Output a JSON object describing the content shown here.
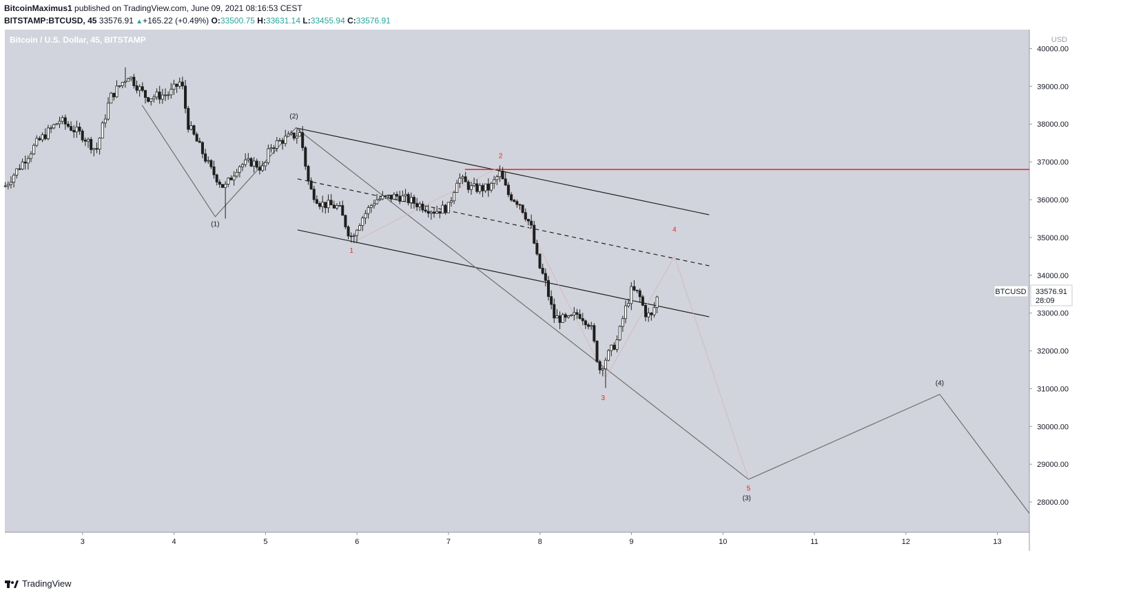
{
  "header": {
    "author": "BitcoinMaximus1",
    "published": "published on TradingView.com, June 09, 2021 08:16:53 CEST",
    "symbol": "BITSTAMP:BTCUSD, 45",
    "last": "33576.91",
    "change_arrow": "▲",
    "change": "+165.22 (+0.49%)",
    "o_label": "O:",
    "o": "33500.75",
    "h_label": "H:",
    "h": "33631.14",
    "l_label": "L:",
    "l": "33455.94",
    "c_label": "C:",
    "c": "33576.91"
  },
  "chart_title": "Bitcoin / U.S. Dollar, 45, BITSTAMP",
  "footer": {
    "brand": "TradingView",
    "logo_icon": "tradingview-logo-icon"
  },
  "colors": {
    "background": "#d1d4dc",
    "candle": "#1f1f1f",
    "red": "#e8231f",
    "text": "#131722",
    "gray_line": "#6e6e6e"
  },
  "chart_data": {
    "type": "candlestick",
    "title": "Bitcoin / U.S. Dollar, 45, BITSTAMP",
    "y_unit": "USD",
    "ylim": [
      27200,
      40500
    ],
    "xlim": [
      2.15,
      13.35
    ],
    "x_ticks": [
      "3",
      "4",
      "5",
      "6",
      "7",
      "8",
      "9",
      "10",
      "11",
      "12",
      "13"
    ],
    "y_ticks": [
      "28000.00",
      "29000.00",
      "30000.00",
      "31000.00",
      "32000.00",
      "33000.00",
      "34000.00",
      "35000.00",
      "36000.00",
      "37000.00",
      "38000.00",
      "39000.00",
      "40000.00"
    ],
    "price_tag": {
      "symbol": "BTCUSD",
      "price": "33576.91",
      "countdown": "28:09",
      "value": 33576.91
    },
    "price_path": [
      [
        2.15,
        36350
      ],
      [
        2.5,
        37500
      ],
      [
        2.75,
        38100
      ],
      [
        3.0,
        37700
      ],
      [
        3.15,
        37300
      ],
      [
        3.3,
        38700
      ],
      [
        3.5,
        39300
      ],
      [
        3.7,
        38700
      ],
      [
        3.95,
        38800
      ],
      [
        4.08,
        39150
      ],
      [
        4.15,
        38000
      ],
      [
        4.3,
        37300
      ],
      [
        4.4,
        36800
      ],
      [
        4.55,
        36300
      ],
      [
        4.7,
        36900
      ],
      [
        4.85,
        37000
      ],
      [
        4.98,
        36800
      ],
      [
        5.05,
        37400
      ],
      [
        5.2,
        37600
      ],
      [
        5.38,
        37750
      ],
      [
        5.48,
        36300
      ],
      [
        5.6,
        35900
      ],
      [
        5.8,
        35800
      ],
      [
        5.93,
        35000
      ],
      [
        6.05,
        35500
      ],
      [
        6.2,
        36000
      ],
      [
        6.45,
        36100
      ],
      [
        6.65,
        35900
      ],
      [
        6.85,
        35700
      ],
      [
        7.0,
        35800
      ],
      [
        7.1,
        36600
      ],
      [
        7.25,
        36300
      ],
      [
        7.45,
        36300
      ],
      [
        7.56,
        36700
      ],
      [
        7.65,
        36150
      ],
      [
        7.78,
        35900
      ],
      [
        7.9,
        35300
      ],
      [
        7.98,
        34300
      ],
      [
        8.05,
        33900
      ],
      [
        8.15,
        32900
      ],
      [
        8.3,
        32800
      ],
      [
        8.42,
        33000
      ],
      [
        8.55,
        32700
      ],
      [
        8.65,
        31500
      ],
      [
        8.72,
        31800
      ],
      [
        8.85,
        32300
      ],
      [
        8.92,
        33000
      ],
      [
        9.0,
        33600
      ],
      [
        9.08,
        33500
      ],
      [
        9.15,
        33000
      ],
      [
        9.22,
        32900
      ],
      [
        9.3,
        33580
      ]
    ],
    "lows": [
      [
        4.56,
        35500
      ],
      [
        5.98,
        34850
      ],
      [
        8.72,
        31020
      ]
    ],
    "highs": [
      [
        3.47,
        39500
      ],
      [
        5.4,
        37950
      ],
      [
        7.55,
        36900
      ]
    ],
    "wave_labels": [
      {
        "text": "(1)",
        "x": 4.45,
        "y": 35300,
        "color": "black"
      },
      {
        "text": "(2)",
        "x": 5.31,
        "y": 38150,
        "color": "black"
      },
      {
        "text": "1",
        "x": 5.94,
        "y": 34600,
        "color": "red"
      },
      {
        "text": "2",
        "x": 7.57,
        "y": 37100,
        "color": "red"
      },
      {
        "text": "3",
        "x": 8.69,
        "y": 30700,
        "color": "red"
      },
      {
        "text": "4",
        "x": 9.47,
        "y": 35150,
        "color": "red"
      },
      {
        "text": "5",
        "x": 10.28,
        "y": 28300,
        "color": "red"
      },
      {
        "text": "(3)",
        "x": 10.26,
        "y": 28050,
        "color": "black"
      },
      {
        "text": "(4)",
        "x": 12.37,
        "y": 31090,
        "color": "black"
      }
    ],
    "lines": [
      {
        "style": "channel",
        "color": "black",
        "points": [
          [
            5.33,
            37900
          ],
          [
            9.85,
            35600
          ]
        ]
      },
      {
        "style": "channel",
        "color": "black",
        "points": [
          [
            5.35,
            35200
          ],
          [
            9.85,
            32900
          ]
        ]
      },
      {
        "style": "dashed",
        "color": "black",
        "points": [
          [
            5.35,
            36550
          ],
          [
            9.85,
            34250
          ]
        ]
      },
      {
        "style": "horizontal",
        "color": "red",
        "points": [
          [
            7.18,
            36800
          ],
          [
            13.35,
            36800
          ]
        ]
      },
      {
        "style": "wave",
        "color": "gray",
        "points": [
          [
            3.65,
            38500
          ],
          [
            4.45,
            35550
          ],
          [
            5.33,
            37900
          ],
          [
            10.28,
            28600
          ],
          [
            12.37,
            30850
          ],
          [
            13.35,
            27700
          ]
        ]
      },
      {
        "style": "subwave",
        "color": "faint-red",
        "points": [
          [
            5.98,
            34900
          ],
          [
            7.55,
            36850
          ],
          [
            8.72,
            31300
          ],
          [
            9.47,
            34500
          ],
          [
            10.28,
            28600
          ]
        ]
      }
    ],
    "grid": false,
    "legend": "none"
  }
}
